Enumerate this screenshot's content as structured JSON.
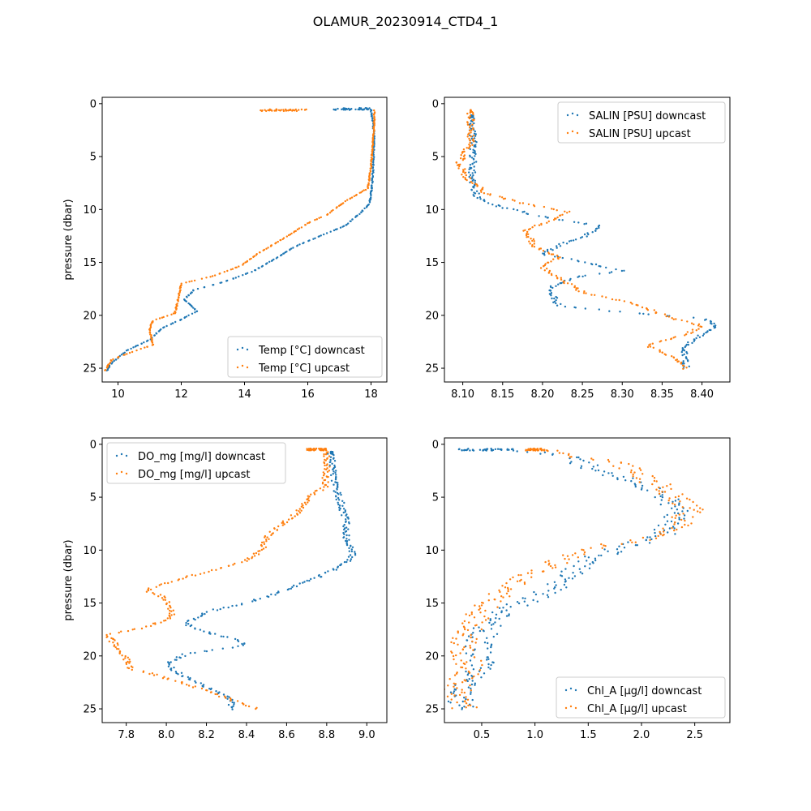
{
  "figure": {
    "title": "OLAMUR_20230914_CTD4_1"
  },
  "colors": {
    "downcast": "#1f77b4",
    "upcast": "#ff7f0e"
  },
  "chart_data": [
    {
      "type": "scatter",
      "ylabel": "pressure (dbar)",
      "xlim": [
        9.5,
        18.5
      ],
      "ylim": [
        26.3,
        -0.6
      ],
      "y_inverted": true,
      "xticks": [
        10,
        12,
        14,
        16,
        18
      ],
      "yticks": [
        0,
        5,
        10,
        15,
        20,
        25
      ],
      "legend_loc": "lower right",
      "series": [
        {
          "name": "Temp [°C] downcast",
          "color": "#1f77b4",
          "profile": [
            [
              16.8,
              0.5
            ],
            [
              18.0,
              0.6
            ],
            [
              18.05,
              1.5
            ],
            [
              18.1,
              3
            ],
            [
              18.08,
              5
            ],
            [
              18.05,
              7
            ],
            [
              18.0,
              8.5
            ],
            [
              17.95,
              9.5
            ],
            [
              17.6,
              10.5
            ],
            [
              17.2,
              11.5
            ],
            [
              16.4,
              12.5
            ],
            [
              15.6,
              13.5
            ],
            [
              15.0,
              14.6
            ],
            [
              14.3,
              15.8
            ],
            [
              13.4,
              16.8
            ],
            [
              12.4,
              17.6
            ],
            [
              12.1,
              18.5
            ],
            [
              12.5,
              19.6
            ],
            [
              12.0,
              20.4
            ],
            [
              11.4,
              21.2
            ],
            [
              11.0,
              22.3
            ],
            [
              10.3,
              23.3
            ],
            [
              9.8,
              24.5
            ],
            [
              9.65,
              25.2
            ]
          ]
        },
        {
          "name": "Temp [°C] upcast",
          "color": "#ff7f0e",
          "profile": [
            [
              14.5,
              0.6
            ],
            [
              16.0,
              0.5
            ],
            [
              17.5,
              0.5
            ],
            [
              18.1,
              0.6
            ],
            [
              18.1,
              2
            ],
            [
              18.05,
              4
            ],
            [
              18.0,
              6
            ],
            [
              17.9,
              8
            ],
            [
              17.2,
              9.2
            ],
            [
              16.6,
              10.5
            ],
            [
              16.0,
              11.3
            ],
            [
              15.2,
              12.8
            ],
            [
              14.4,
              14.2
            ],
            [
              13.9,
              15.3
            ],
            [
              13.0,
              16.3
            ],
            [
              12.0,
              17.0
            ],
            [
              11.9,
              18.5
            ],
            [
              11.8,
              19.8
            ],
            [
              11.1,
              20.5
            ],
            [
              11.0,
              21.3
            ],
            [
              11.1,
              22.8
            ],
            [
              10.6,
              23.3
            ],
            [
              9.8,
              24.2
            ],
            [
              9.6,
              25.2
            ]
          ]
        }
      ]
    },
    {
      "type": "scatter",
      "ylabel": "",
      "xlim": [
        8.077,
        8.435
      ],
      "ylim": [
        26.3,
        -0.6
      ],
      "y_inverted": true,
      "xticks": [
        8.1,
        8.15,
        8.2,
        8.25,
        8.3,
        8.35,
        8.4
      ],
      "yticks": [
        0,
        5,
        10,
        15,
        20,
        25
      ],
      "legend_loc": "upper right",
      "series": [
        {
          "name": "SALIN [PSU] downcast",
          "color": "#1f77b4",
          "profile": [
            [
              8.11,
              1.2
            ],
            [
              8.113,
              3
            ],
            [
              8.113,
              5
            ],
            [
              8.112,
              6.5
            ],
            [
              8.113,
              8
            ],
            [
              8.12,
              9
            ],
            [
              8.15,
              9.8
            ],
            [
              8.19,
              10.5
            ],
            [
              8.24,
              11.2
            ],
            [
              8.275,
              11.6
            ],
            [
              8.25,
              12.6
            ],
            [
              8.22,
              13.4
            ],
            [
              8.2,
              14.2
            ],
            [
              8.24,
              14.8
            ],
            [
              8.3,
              15.8
            ],
            [
              8.24,
              16.4
            ],
            [
              8.21,
              17.4
            ],
            [
              8.215,
              18.5
            ],
            [
              8.22,
              19.1
            ],
            [
              8.3,
              19.7
            ],
            [
              8.4,
              20.3
            ],
            [
              8.42,
              21
            ],
            [
              8.4,
              21.8
            ],
            [
              8.38,
              22.8
            ],
            [
              8.378,
              24
            ],
            [
              8.38,
              25
            ]
          ]
        },
        {
          "name": "SALIN [PSU] upcast",
          "color": "#ff7f0e",
          "profile": [
            [
              8.11,
              0.7
            ],
            [
              8.11,
              2
            ],
            [
              8.11,
              3.8
            ],
            [
              8.102,
              4.6
            ],
            [
              8.095,
              5.7
            ],
            [
              8.1,
              6.3
            ],
            [
              8.105,
              7
            ],
            [
              8.13,
              8.5
            ],
            [
              8.18,
              9.5
            ],
            [
              8.23,
              10.2
            ],
            [
              8.21,
              11
            ],
            [
              8.18,
              12
            ],
            [
              8.19,
              13.5
            ],
            [
              8.22,
              14.5
            ],
            [
              8.2,
              15.5
            ],
            [
              8.22,
              16.5
            ],
            [
              8.25,
              17.8
            ],
            [
              8.32,
              19
            ],
            [
              8.36,
              20.2
            ],
            [
              8.4,
              21
            ],
            [
              8.38,
              21.8
            ],
            [
              8.33,
              22.8
            ],
            [
              8.36,
              23.8
            ],
            [
              8.38,
              25
            ]
          ]
        }
      ]
    },
    {
      "type": "scatter",
      "ylabel": "pressure (dbar)",
      "xlim": [
        7.68,
        9.1
      ],
      "ylim": [
        26.3,
        -0.6
      ],
      "y_inverted": true,
      "xticks": [
        7.8,
        8.0,
        8.2,
        8.4,
        8.6,
        8.8,
        9.0
      ],
      "yticks": [
        0,
        5,
        10,
        15,
        20,
        25
      ],
      "legend_loc": "upper left",
      "series": [
        {
          "name": "DO_mg [mg/l] downcast",
          "color": "#1f77b4",
          "profile": [
            [
              8.82,
              0.8
            ],
            [
              8.83,
              2
            ],
            [
              8.84,
              4
            ],
            [
              8.87,
              5.5
            ],
            [
              8.9,
              7.5
            ],
            [
              8.9,
              9
            ],
            [
              8.93,
              10.5
            ],
            [
              8.88,
              11.5
            ],
            [
              8.75,
              12.6
            ],
            [
              8.65,
              13.3
            ],
            [
              8.55,
              14.1
            ],
            [
              8.4,
              15
            ],
            [
              8.25,
              15.6
            ],
            [
              8.15,
              16.3
            ],
            [
              8.1,
              17
            ],
            [
              8.15,
              17.5
            ],
            [
              8.35,
              18.5
            ],
            [
              8.4,
              19
            ],
            [
              8.1,
              19.8
            ],
            [
              8.0,
              20.8
            ],
            [
              8.05,
              21.5
            ],
            [
              8.15,
              22.5
            ],
            [
              8.25,
              23.3
            ],
            [
              8.32,
              24
            ],
            [
              8.33,
              25
            ]
          ]
        },
        {
          "name": "DO_mg [mg/l] upcast",
          "color": "#ff7f0e",
          "profile": [
            [
              8.7,
              0.5
            ],
            [
              8.8,
              0.6
            ],
            [
              8.8,
              2
            ],
            [
              8.79,
              4
            ],
            [
              8.7,
              5.2
            ],
            [
              8.65,
              6.5
            ],
            [
              8.58,
              7.5
            ],
            [
              8.5,
              8.7
            ],
            [
              8.48,
              10
            ],
            [
              8.4,
              11
            ],
            [
              8.25,
              11.8
            ],
            [
              8.05,
              12.8
            ],
            [
              7.9,
              13.8
            ],
            [
              7.98,
              14.4
            ],
            [
              8.02,
              15.2
            ],
            [
              8.03,
              16.3
            ],
            [
              7.9,
              17.3
            ],
            [
              7.7,
              18
            ],
            [
              7.75,
              19
            ],
            [
              7.8,
              20.2
            ],
            [
              7.82,
              21.2
            ],
            [
              7.95,
              21.8
            ],
            [
              8.15,
              23
            ],
            [
              8.35,
              24.3
            ],
            [
              8.45,
              25
            ]
          ]
        }
      ]
    },
    {
      "type": "scatter",
      "ylabel": "",
      "xlim": [
        0.15,
        2.83
      ],
      "ylim": [
        26.3,
        -0.6
      ],
      "y_inverted": true,
      "xticks": [
        0.5,
        1.0,
        1.5,
        2.0,
        2.5
      ],
      "yticks": [
        0,
        5,
        10,
        15,
        20,
        25
      ],
      "legend_loc": "lower right",
      "series": [
        {
          "name": "Chl_A [µg/l] downcast",
          "color": "#1f77b4",
          "profile": [
            [
              0.25,
              0.5
            ],
            [
              0.8,
              0.5
            ],
            [
              1.2,
              1.0
            ],
            [
              1.35,
              1.3
            ],
            [
              1.5,
              2.0
            ],
            [
              1.75,
              3.0
            ],
            [
              2.05,
              4.2
            ],
            [
              2.3,
              5.5
            ],
            [
              2.35,
              7
            ],
            [
              2.2,
              8.5
            ],
            [
              1.8,
              9.8
            ],
            [
              1.5,
              11
            ],
            [
              1.3,
              12.5
            ],
            [
              1.1,
              14
            ],
            [
              0.8,
              15.3
            ],
            [
              0.6,
              16.7
            ],
            [
              0.5,
              18.2
            ],
            [
              0.45,
              19.5
            ],
            [
              0.5,
              21
            ],
            [
              0.4,
              22
            ],
            [
              0.33,
              23.5
            ],
            [
              0.3,
              25
            ]
          ]
        },
        {
          "name": "Chl_A [µg/l] upcast",
          "color": "#ff7f0e",
          "profile": [
            [
              0.9,
              0.5
            ],
            [
              1.1,
              0.6
            ],
            [
              1.25,
              0.9
            ],
            [
              1.5,
              1.3
            ],
            [
              1.9,
              2.2
            ],
            [
              2.1,
              3.5
            ],
            [
              2.3,
              4.8
            ],
            [
              2.45,
              6
            ],
            [
              2.4,
              7.5
            ],
            [
              2.2,
              8.6
            ],
            [
              1.7,
              9.5
            ],
            [
              1.3,
              10.6
            ],
            [
              1.0,
              12
            ],
            [
              0.8,
              13.5
            ],
            [
              0.55,
              15
            ],
            [
              0.45,
              16.5
            ],
            [
              0.35,
              18
            ],
            [
              0.3,
              19.5
            ],
            [
              0.4,
              21
            ],
            [
              0.3,
              22.5
            ],
            [
              0.25,
              24
            ],
            [
              0.35,
              25
            ]
          ]
        }
      ]
    }
  ]
}
